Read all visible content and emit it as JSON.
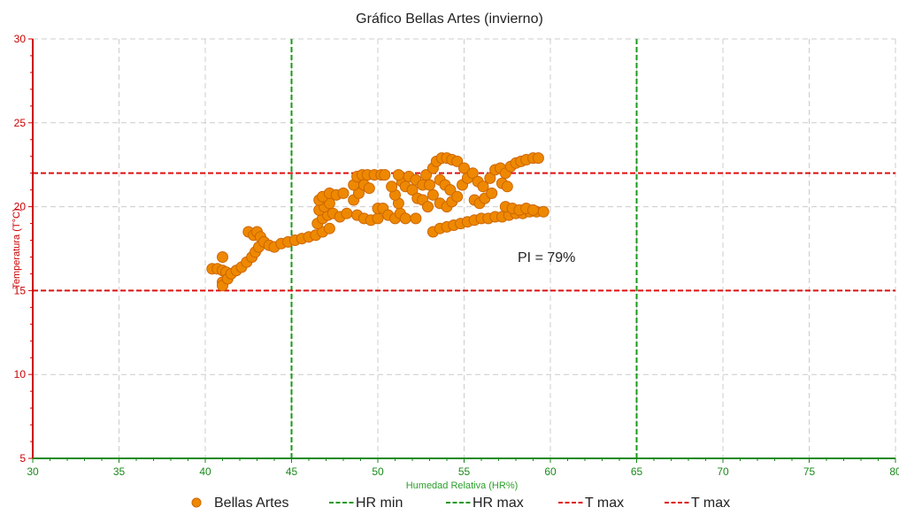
{
  "chart_data": {
    "type": "scatter",
    "title": "Gráfico Bellas Artes (invierno)",
    "xlabel": "Humedad Relativa (HR%)",
    "ylabel": "Temperatura (T°C)",
    "xlim": [
      30,
      80
    ],
    "ylim": [
      5,
      30
    ],
    "x_ticks": [
      30,
      35,
      40,
      45,
      50,
      55,
      60,
      65,
      70,
      75,
      80
    ],
    "y_ticks": [
      5,
      10,
      15,
      20,
      25,
      30
    ],
    "grid": true,
    "annotation": "PI = 79%",
    "legend_position": "bottom",
    "reference_lines": [
      {
        "name": "HR min",
        "orientation": "vertical",
        "value": 45,
        "color": "#1a9a1a",
        "style": "dashed"
      },
      {
        "name": "HR max",
        "orientation": "vertical",
        "value": 65,
        "color": "#1a9a1a",
        "style": "dashed"
      },
      {
        "name": "T max",
        "orientation": "horizontal",
        "value": 22,
        "color": "#dd1111",
        "style": "dashed"
      },
      {
        "name": "T max",
        "orientation": "horizontal",
        "value": 15,
        "color": "#dd1111",
        "style": "dashed"
      }
    ],
    "series": [
      {
        "name": "Bellas Artes",
        "color": "#ee8800",
        "edge_color": "#cc6600",
        "points": [
          [
            40.4,
            16.3
          ],
          [
            40.7,
            16.3
          ],
          [
            41.0,
            16.2
          ],
          [
            41.0,
            17.0
          ],
          [
            41.2,
            16.1
          ],
          [
            41.0,
            15.5
          ],
          [
            41.0,
            15.3
          ],
          [
            41.3,
            15.7
          ],
          [
            41.5,
            16.0
          ],
          [
            41.8,
            16.2
          ],
          [
            42.1,
            16.4
          ],
          [
            42.4,
            16.7
          ],
          [
            42.7,
            17.0
          ],
          [
            42.9,
            17.3
          ],
          [
            43.1,
            17.6
          ],
          [
            42.5,
            18.5
          ],
          [
            42.8,
            18.3
          ],
          [
            43.0,
            18.5
          ],
          [
            43.2,
            18.2
          ],
          [
            43.4,
            17.9
          ],
          [
            43.7,
            17.7
          ],
          [
            44.0,
            17.6
          ],
          [
            44.4,
            17.8
          ],
          [
            44.8,
            17.9
          ],
          [
            45.2,
            18.0
          ],
          [
            45.6,
            18.1
          ],
          [
            46.0,
            18.2
          ],
          [
            46.4,
            18.3
          ],
          [
            46.8,
            18.5
          ],
          [
            47.2,
            18.7
          ],
          [
            46.5,
            19.0
          ],
          [
            46.8,
            19.3
          ],
          [
            47.1,
            19.5
          ],
          [
            46.6,
            19.8
          ],
          [
            46.9,
            20.0
          ],
          [
            47.2,
            20.2
          ],
          [
            46.6,
            20.4
          ],
          [
            46.8,
            20.6
          ],
          [
            47.2,
            20.8
          ],
          [
            47.6,
            20.7
          ],
          [
            48.0,
            20.8
          ],
          [
            47.4,
            19.6
          ],
          [
            47.8,
            19.4
          ],
          [
            48.2,
            19.6
          ],
          [
            48.6,
            20.4
          ],
          [
            48.9,
            20.8
          ],
          [
            48.6,
            21.3
          ],
          [
            48.8,
            21.8
          ],
          [
            49.1,
            21.9
          ],
          [
            49.4,
            21.9
          ],
          [
            49.8,
            21.9
          ],
          [
            50.2,
            21.9
          ],
          [
            50.4,
            21.9
          ],
          [
            49.2,
            21.3
          ],
          [
            49.5,
            21.1
          ],
          [
            48.8,
            19.5
          ],
          [
            49.2,
            19.3
          ],
          [
            49.6,
            19.2
          ],
          [
            50.0,
            19.3
          ],
          [
            50.0,
            19.9
          ],
          [
            50.3,
            19.9
          ],
          [
            50.6,
            19.5
          ],
          [
            51.0,
            19.3
          ],
          [
            51.3,
            19.6
          ],
          [
            51.6,
            19.3
          ],
          [
            51.2,
            20.2
          ],
          [
            51.0,
            20.7
          ],
          [
            50.8,
            21.2
          ],
          [
            51.4,
            21.5
          ],
          [
            51.8,
            21.8
          ],
          [
            51.2,
            21.9
          ],
          [
            51.6,
            21.2
          ],
          [
            52.0,
            21.0
          ],
          [
            52.3,
            20.5
          ],
          [
            52.2,
            21.6
          ],
          [
            52.6,
            21.3
          ],
          [
            52.6,
            20.4
          ],
          [
            52.2,
            19.3
          ],
          [
            52.9,
            20.0
          ],
          [
            53.2,
            20.7
          ],
          [
            53.0,
            21.3
          ],
          [
            52.8,
            21.9
          ],
          [
            53.2,
            22.3
          ],
          [
            53.4,
            22.7
          ],
          [
            53.7,
            22.9
          ],
          [
            54.0,
            22.9
          ],
          [
            54.3,
            22.8
          ],
          [
            54.6,
            22.7
          ],
          [
            53.6,
            21.6
          ],
          [
            53.9,
            21.3
          ],
          [
            54.2,
            21.0
          ],
          [
            53.6,
            20.2
          ],
          [
            54.0,
            20.0
          ],
          [
            54.3,
            20.3
          ],
          [
            54.6,
            20.6
          ],
          [
            54.9,
            21.3
          ],
          [
            55.2,
            21.7
          ],
          [
            55.0,
            22.3
          ],
          [
            55.5,
            22.0
          ],
          [
            55.8,
            21.5
          ],
          [
            56.1,
            21.2
          ],
          [
            55.6,
            20.4
          ],
          [
            55.9,
            20.2
          ],
          [
            56.2,
            20.5
          ],
          [
            56.6,
            20.8
          ],
          [
            56.5,
            21.7
          ],
          [
            56.8,
            22.2
          ],
          [
            57.1,
            22.3
          ],
          [
            57.4,
            22.0
          ],
          [
            57.7,
            22.4
          ],
          [
            58.0,
            22.6
          ],
          [
            58.3,
            22.7
          ],
          [
            58.6,
            22.8
          ],
          [
            59.0,
            22.9
          ],
          [
            59.3,
            22.9
          ],
          [
            57.2,
            21.4
          ],
          [
            57.5,
            21.2
          ],
          [
            53.2,
            18.5
          ],
          [
            53.6,
            18.7
          ],
          [
            54.0,
            18.8
          ],
          [
            54.4,
            18.9
          ],
          [
            54.8,
            19.0
          ],
          [
            55.2,
            19.1
          ],
          [
            55.6,
            19.2
          ],
          [
            56.0,
            19.3
          ],
          [
            56.4,
            19.3
          ],
          [
            56.8,
            19.4
          ],
          [
            57.2,
            19.4
          ],
          [
            57.6,
            19.5
          ],
          [
            58.0,
            19.6
          ],
          [
            58.4,
            19.6
          ],
          [
            58.8,
            19.7
          ],
          [
            59.2,
            19.7
          ],
          [
            59.6,
            19.7
          ],
          [
            57.4,
            20.0
          ],
          [
            57.8,
            19.9
          ],
          [
            58.2,
            19.8
          ],
          [
            58.6,
            19.9
          ],
          [
            59.0,
            19.8
          ]
        ]
      }
    ]
  }
}
